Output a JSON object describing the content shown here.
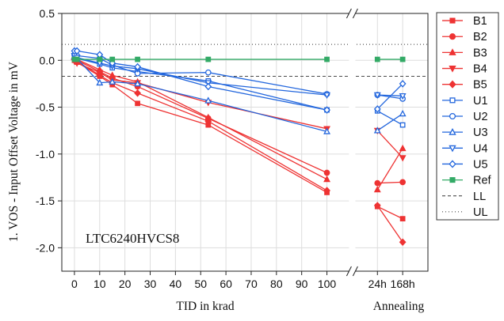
{
  "chart_data": {
    "type": "line",
    "annotation": "LTC6240HVCS8",
    "ylabel": "1. VOS - Input Offset Voltage in mV",
    "xlabel_left": "TID in krad",
    "xlabel_right": "Annealing",
    "ylim": [
      -2.25,
      0.5
    ],
    "y_ticks": [
      0.5,
      0.0,
      -0.5,
      -1.0,
      -1.5,
      -2.0
    ],
    "y_tick_labels": [
      "0.5",
      "0.0",
      "-0.5",
      "-1.0",
      "-1.5",
      "-2.0"
    ],
    "xlim": [
      -5,
      140
    ],
    "x_ticks": [
      0,
      10,
      20,
      30,
      40,
      50,
      60,
      70,
      80,
      90,
      100,
      120,
      130
    ],
    "x_tick_labels": [
      "0",
      "10",
      "20",
      "30",
      "40",
      "50",
      "60",
      "70",
      "80",
      "90",
      "100",
      "24h",
      "168h"
    ],
    "x_break": 110,
    "limits": {
      "LL": -0.17,
      "UL": 0.17
    },
    "series": [
      {
        "name": "B1",
        "color": "#ee3333",
        "marker": "square",
        "filled": true,
        "x": [
          0,
          1,
          10,
          15,
          25,
          53,
          100,
          120,
          130
        ],
        "y": [
          0.0,
          -0.02,
          -0.17,
          -0.26,
          -0.46,
          -0.69,
          -1.41,
          -1.56,
          -1.69
        ]
      },
      {
        "name": "B2",
        "color": "#ee3333",
        "marker": "circle",
        "filled": true,
        "x": [
          0,
          1,
          10,
          15,
          25,
          53,
          100,
          120,
          130
        ],
        "y": [
          0.02,
          0.0,
          -0.12,
          -0.19,
          -0.28,
          -0.62,
          -1.2,
          -1.31,
          -1.3
        ]
      },
      {
        "name": "B3",
        "color": "#ee3333",
        "marker": "triangle-up",
        "filled": true,
        "x": [
          0,
          1,
          10,
          15,
          25,
          53,
          100,
          120,
          130
        ],
        "y": [
          0.03,
          0.01,
          -0.1,
          -0.16,
          -0.23,
          -0.61,
          -1.27,
          -1.38,
          -0.94
        ]
      },
      {
        "name": "B4",
        "color": "#ee3333",
        "marker": "triangle-down",
        "filled": true,
        "x": [
          0,
          1,
          10,
          15,
          25,
          53,
          100,
          120,
          130
        ],
        "y": [
          -0.01,
          -0.03,
          -0.13,
          -0.21,
          -0.24,
          -0.45,
          -0.73,
          -0.75,
          -1.04
        ]
      },
      {
        "name": "B5",
        "color": "#ee3333",
        "marker": "diamond",
        "filled": true,
        "x": [
          0,
          1,
          10,
          15,
          25,
          53,
          100,
          120,
          130
        ],
        "y": [
          0.01,
          -0.01,
          -0.16,
          -0.24,
          -0.35,
          -0.65,
          -1.39,
          -1.55,
          -1.94
        ]
      },
      {
        "name": "U1",
        "color": "#2266dd",
        "marker": "square",
        "filled": false,
        "x": [
          0,
          1,
          10,
          15,
          25,
          53,
          100,
          120,
          130
        ],
        "y": [
          0.03,
          0.02,
          -0.04,
          -0.08,
          -0.12,
          -0.22,
          -0.53,
          -0.54,
          -0.69
        ]
      },
      {
        "name": "U2",
        "color": "#2266dd",
        "marker": "circle",
        "filled": false,
        "x": [
          0,
          1,
          10,
          15,
          25,
          53,
          100,
          120,
          130
        ],
        "y": [
          0.06,
          0.05,
          0.02,
          -0.05,
          -0.14,
          -0.13,
          -0.36,
          -0.37,
          -0.41
        ]
      },
      {
        "name": "U3",
        "color": "#2266dd",
        "marker": "triangle-up",
        "filled": false,
        "x": [
          0,
          1,
          10,
          15,
          25,
          53,
          100,
          120,
          130
        ],
        "y": [
          0.04,
          0.02,
          -0.24,
          -0.23,
          -0.25,
          -0.43,
          -0.76,
          -0.75,
          -0.57
        ]
      },
      {
        "name": "U4",
        "color": "#2266dd",
        "marker": "triangle-down",
        "filled": false,
        "x": [
          0,
          1,
          10,
          15,
          25,
          53,
          100,
          120,
          130
        ],
        "y": [
          0.05,
          0.03,
          -0.03,
          -0.06,
          -0.09,
          -0.24,
          -0.37,
          -0.37,
          -0.38
        ]
      },
      {
        "name": "U5",
        "color": "#2266dd",
        "marker": "diamond",
        "filled": false,
        "x": [
          0,
          1,
          10,
          15,
          25,
          53,
          100,
          120,
          130
        ],
        "y": [
          0.1,
          0.1,
          0.06,
          -0.03,
          -0.07,
          -0.28,
          -0.53,
          -0.52,
          -0.25
        ]
      },
      {
        "name": "Ref",
        "color": "#33aa66",
        "marker": "square",
        "filled": true,
        "x": [
          0,
          1,
          10,
          15,
          25,
          53,
          100,
          120,
          130
        ],
        "y": [
          0.01,
          0.01,
          0.01,
          0.01,
          0.01,
          0.01,
          0.01,
          0.01,
          0.01
        ]
      }
    ],
    "legend": [
      "B1",
      "B2",
      "B3",
      "B4",
      "B5",
      "U1",
      "U2",
      "U3",
      "U4",
      "U5",
      "Ref",
      "LL",
      "UL"
    ],
    "legend_position": "right"
  }
}
